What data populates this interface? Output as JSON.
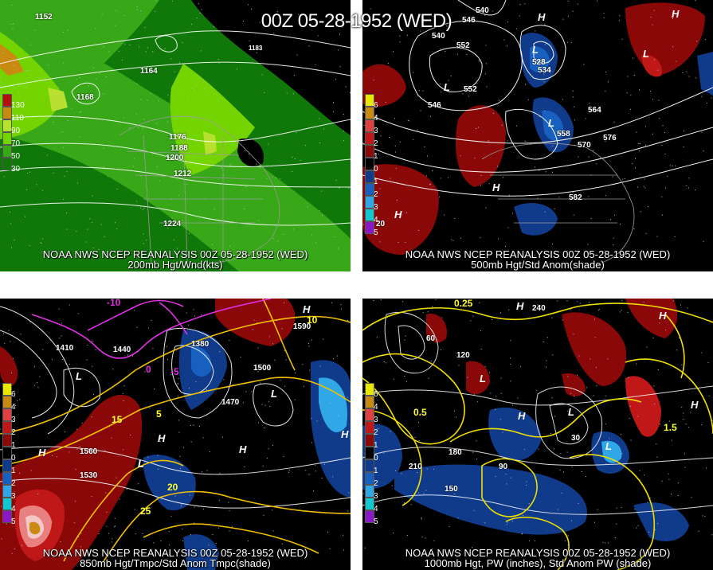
{
  "main_title": "00Z 05-28-1952 (WED)",
  "panels": {
    "p1": {
      "caption_top": "NOAA NWS NCEP REANALYSIS 00Z 05-28-1952 (WED)",
      "caption_bottom": "200mb Hgt/Wnd(kts)",
      "colorbar": [
        {
          "label": "130",
          "color": "#b01010"
        },
        {
          "label": "110",
          "color": "#c88a10"
        },
        {
          "label": "90",
          "color": "#b8e030"
        },
        {
          "label": "70",
          "color": "#74d400"
        },
        {
          "label": "50",
          "color": "#38a818"
        },
        {
          "label": "30",
          "color": "#107808"
        }
      ],
      "contour_labels": [
        "1152",
        "1164",
        "1176",
        "1188",
        "1200",
        "1212",
        "1224",
        "1168",
        "1183"
      ]
    },
    "p2": {
      "caption_top": "NOAA NWS NCEP REANALYSIS 00Z 05-28-1952 (WED)",
      "caption_bottom": "500mb Hgt/Std Anom(shade)",
      "colorbar": [
        {
          "label": "6",
          "color": "#e8e800"
        },
        {
          "label": "4",
          "color": "#c88a10"
        },
        {
          "label": "3",
          "color": "#e04040"
        },
        {
          "label": "2",
          "color": "#c01818"
        },
        {
          "label": "1",
          "color": "#8a0808"
        },
        {
          "label": "0",
          "color": "#000000"
        },
        {
          "label": "1",
          "color": "#103a8a"
        },
        {
          "label": "2",
          "color": "#1860c0"
        },
        {
          "label": "3",
          "color": "#30a8e8"
        },
        {
          "label": "4",
          "color": "#10c8d0"
        },
        {
          "label": "5",
          "color": "#8818c8"
        }
      ],
      "contour_labels": [
        "540",
        "546",
        "552",
        "528",
        "534",
        "546",
        "552",
        "558",
        "564",
        "570",
        "576",
        "582",
        "540",
        "20"
      ]
    },
    "p3": {
      "caption_top": "NOAA NWS NCEP REANALYSIS 00Z 05-28-1952 (WED)",
      "caption_bottom": "850mb Hgt/Tmpc/Std Anom Tmpc(shade)",
      "colorbar": [
        {
          "label": "6",
          "color": "#e8e800"
        },
        {
          "label": "4",
          "color": "#c88a10"
        },
        {
          "label": "3",
          "color": "#e04040"
        },
        {
          "label": "2",
          "color": "#c01818"
        },
        {
          "label": "1",
          "color": "#8a0808"
        },
        {
          "label": "0",
          "color": "#000000"
        },
        {
          "label": "1",
          "color": "#103a8a"
        },
        {
          "label": "2",
          "color": "#1860c0"
        },
        {
          "label": "3",
          "color": "#30a8e8"
        },
        {
          "label": "4",
          "color": "#10c8d0"
        },
        {
          "label": "5",
          "color": "#8818c8"
        }
      ],
      "contour_labels": [
        "1410",
        "1440",
        "1380",
        "1470",
        "1560",
        "1530",
        "1590",
        "1500",
        "10",
        "5",
        "15",
        "20",
        "25",
        "-5",
        "-10",
        "0"
      ]
    },
    "p4": {
      "caption_top": "NOAA NWS NCEP REANALYSIS 00Z 05-28-1952 (WED)",
      "caption_bottom": "1000mb Hgt, PW (inches), Std Anom PW (shade)",
      "colorbar": [
        {
          "label": "6",
          "color": "#e8e800"
        },
        {
          "label": "4",
          "color": "#c88a10"
        },
        {
          "label": "3",
          "color": "#e04040"
        },
        {
          "label": "2",
          "color": "#c01818"
        },
        {
          "label": "1",
          "color": "#8a0808"
        },
        {
          "label": "0",
          "color": "#000000"
        },
        {
          "label": "1",
          "color": "#103a8a"
        },
        {
          "label": "2",
          "color": "#1860c0"
        },
        {
          "label": "3",
          "color": "#30a8e8"
        },
        {
          "label": "4",
          "color": "#10c8d0"
        },
        {
          "label": "5",
          "color": "#8818c8"
        }
      ],
      "contour_labels": [
        "0.25",
        "0.5",
        "1.5",
        "210",
        "150",
        "120",
        "180",
        "90",
        "240",
        "60",
        "30"
      ]
    }
  }
}
